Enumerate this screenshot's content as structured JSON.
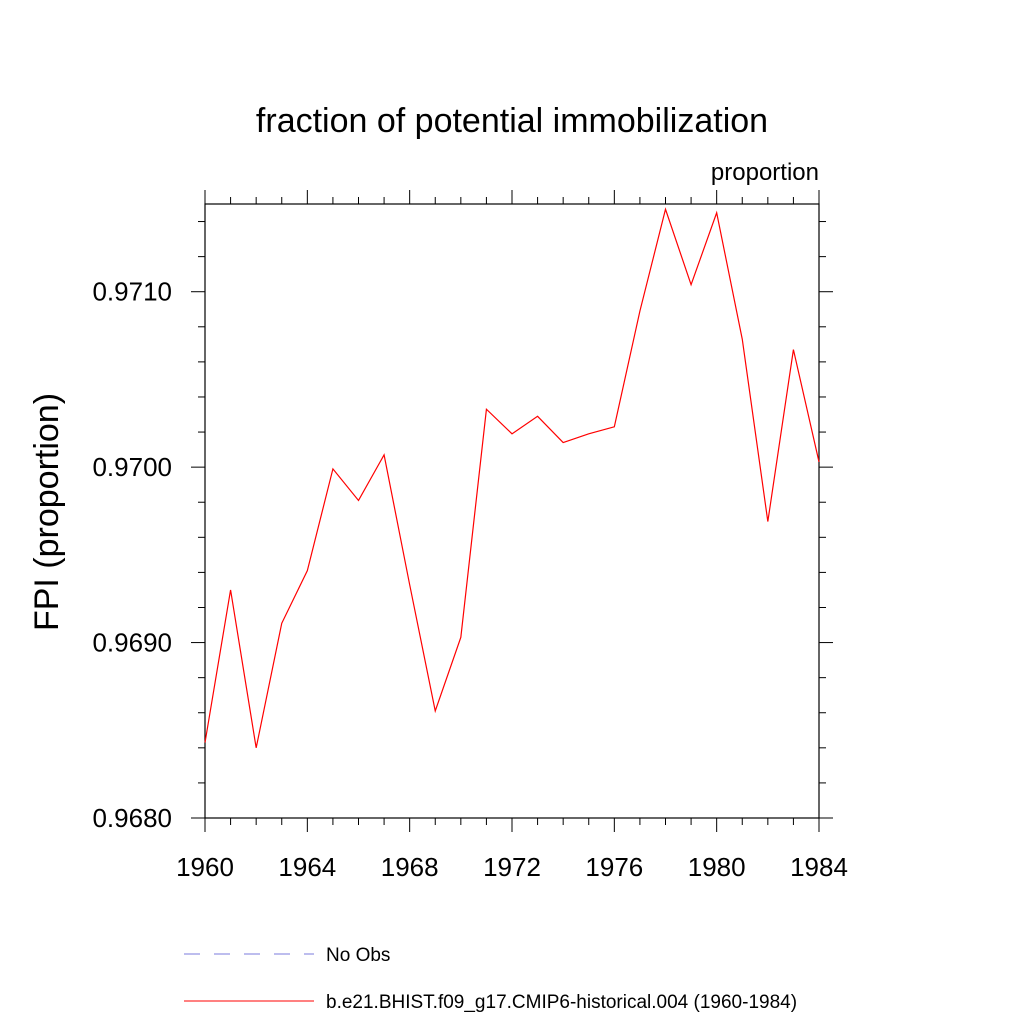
{
  "chart_data": {
    "type": "line",
    "title": "fraction of potential immobilization",
    "units_label": "proportion",
    "ylabel": "FPI  (proportion)",
    "xlabel": "",
    "xlim": [
      1960,
      1984
    ],
    "ylim": [
      0.968,
      0.9715
    ],
    "x_ticks": [
      1960,
      1964,
      1968,
      1972,
      1976,
      1980,
      1984
    ],
    "x_tick_labels": [
      "1960",
      "1964",
      "1968",
      "1972",
      "1976",
      "1980",
      "1984"
    ],
    "y_ticks": [
      0.968,
      0.969,
      0.97,
      0.971
    ],
    "y_tick_labels": [
      "0.9680",
      "0.9690",
      "0.9700",
      "0.9710"
    ],
    "grid": false,
    "legend_position": "bottom",
    "series": [
      {
        "name": "b.e21.BHIST.f09_g17.CMIP6-historical.004 (1960-1984)",
        "color": "#ff0000",
        "style": "solid",
        "x": [
          1960,
          1961,
          1962,
          1963,
          1964,
          1965,
          1966,
          1967,
          1968,
          1969,
          1970,
          1971,
          1972,
          1973,
          1974,
          1975,
          1976,
          1977,
          1978,
          1979,
          1980,
          1981,
          1982,
          1983,
          1984
        ],
        "values": [
          0.96843,
          0.9693,
          0.9684,
          0.96911,
          0.96941,
          0.96999,
          0.96981,
          0.97007,
          0.96933,
          0.96861,
          0.96903,
          0.97033,
          0.97019,
          0.97029,
          0.97014,
          0.97019,
          0.97023,
          0.97089,
          0.97147,
          0.97104,
          0.97145,
          0.97073,
          0.96969,
          0.97067,
          0.97003
        ]
      }
    ],
    "legend": [
      {
        "label": "No Obs",
        "color": "#7b7bdc",
        "style": "dashed"
      },
      {
        "label": "b.e21.BHIST.f09_g17.CMIP6-historical.004 (1960-1984)",
        "color": "#ff0000",
        "style": "solid"
      }
    ]
  }
}
